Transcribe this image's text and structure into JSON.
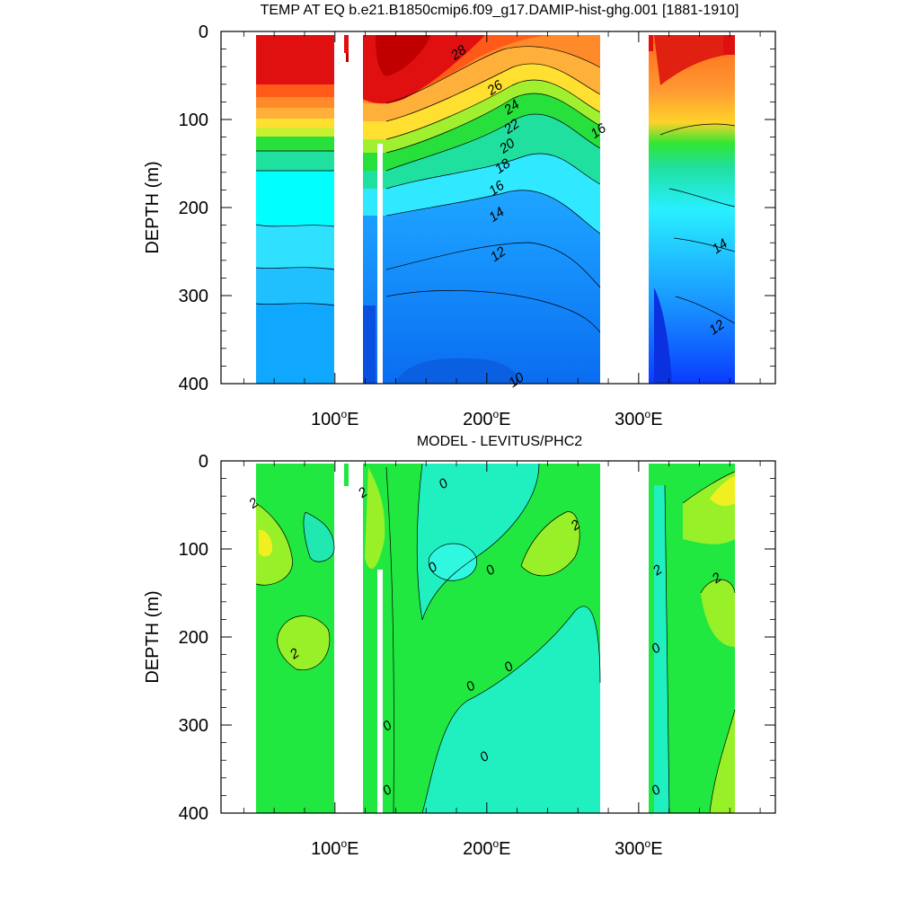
{
  "chart_data": [
    {
      "type": "heatmap",
      "title": "TEMP AT EQ b.e21.B1850cmip6.f09_g17.DAMIP-hist-ghg.001 [1881-1910]",
      "xlabel": "",
      "ylabel": "DEPTH (m)",
      "xlim": [
        25,
        390
      ],
      "ylim": [
        400,
        0
      ],
      "x_ticks": [
        {
          "value": 100,
          "num": "100",
          "suffix": "E"
        },
        {
          "value": 200,
          "num": "200",
          "suffix": "E"
        },
        {
          "value": 300,
          "num": "300",
          "suffix": "E"
        }
      ],
      "y_ticks": [
        0,
        100,
        200,
        300,
        400
      ],
      "contour_labels": [
        {
          "text": "28",
          "lon": 183,
          "depth": 28
        },
        {
          "text": "26",
          "lon": 207,
          "depth": 68
        },
        {
          "text": "24",
          "lon": 218,
          "depth": 90
        },
        {
          "text": "22",
          "lon": 218,
          "depth": 112
        },
        {
          "text": "20",
          "lon": 215,
          "depth": 134
        },
        {
          "text": "18",
          "lon": 212,
          "depth": 157
        },
        {
          "text": "16",
          "lon": 208,
          "depth": 182
        },
        {
          "text": "14",
          "lon": 208,
          "depth": 212
        },
        {
          "text": "12",
          "lon": 209,
          "depth": 257
        },
        {
          "text": "10",
          "lon": 221,
          "depth": 400
        },
        {
          "text": "16",
          "lon": 275,
          "depth": 117
        },
        {
          "text": "14",
          "lon": 355,
          "depth": 248
        },
        {
          "text": "12",
          "lon": 353,
          "depth": 340
        }
      ]
    },
    {
      "type": "heatmap",
      "title": "MODEL - LEVITUS/PHC2",
      "xlabel": "",
      "ylabel": "DEPTH (m)",
      "xlim": [
        25,
        390
      ],
      "ylim": [
        400,
        0
      ],
      "x_ticks": [
        {
          "value": 100,
          "num": "100",
          "suffix": "E"
        },
        {
          "value": 200,
          "num": "200",
          "suffix": "E"
        },
        {
          "value": 300,
          "num": "300",
          "suffix": "E"
        }
      ],
      "y_ticks": [
        0,
        100,
        200,
        300,
        400
      ],
      "contour_labels": [
        {
          "text": "2",
          "lon": 48,
          "depth": 52
        },
        {
          "text": "2",
          "lon": 120,
          "depth": 40
        },
        {
          "text": "0",
          "lon": 173,
          "depth": 30
        },
        {
          "text": "2",
          "lon": 260,
          "depth": 77
        },
        {
          "text": "0",
          "lon": 166,
          "depth": 125
        },
        {
          "text": "0",
          "lon": 204,
          "depth": 128
        },
        {
          "text": "2",
          "lon": 353,
          "depth": 137
        },
        {
          "text": "2",
          "lon": 314,
          "depth": 128
        },
        {
          "text": "2",
          "lon": 75,
          "depth": 223
        },
        {
          "text": "0",
          "lon": 313,
          "depth": 217
        },
        {
          "text": "0",
          "lon": 216,
          "depth": 238
        },
        {
          "text": "0",
          "lon": 191,
          "depth": 260
        },
        {
          "text": "0",
          "lon": 136,
          "depth": 305
        },
        {
          "text": "0",
          "lon": 200,
          "depth": 340
        },
        {
          "text": "0",
          "lon": 136,
          "depth": 378
        },
        {
          "text": "0",
          "lon": 313,
          "depth": 378
        }
      ]
    }
  ]
}
